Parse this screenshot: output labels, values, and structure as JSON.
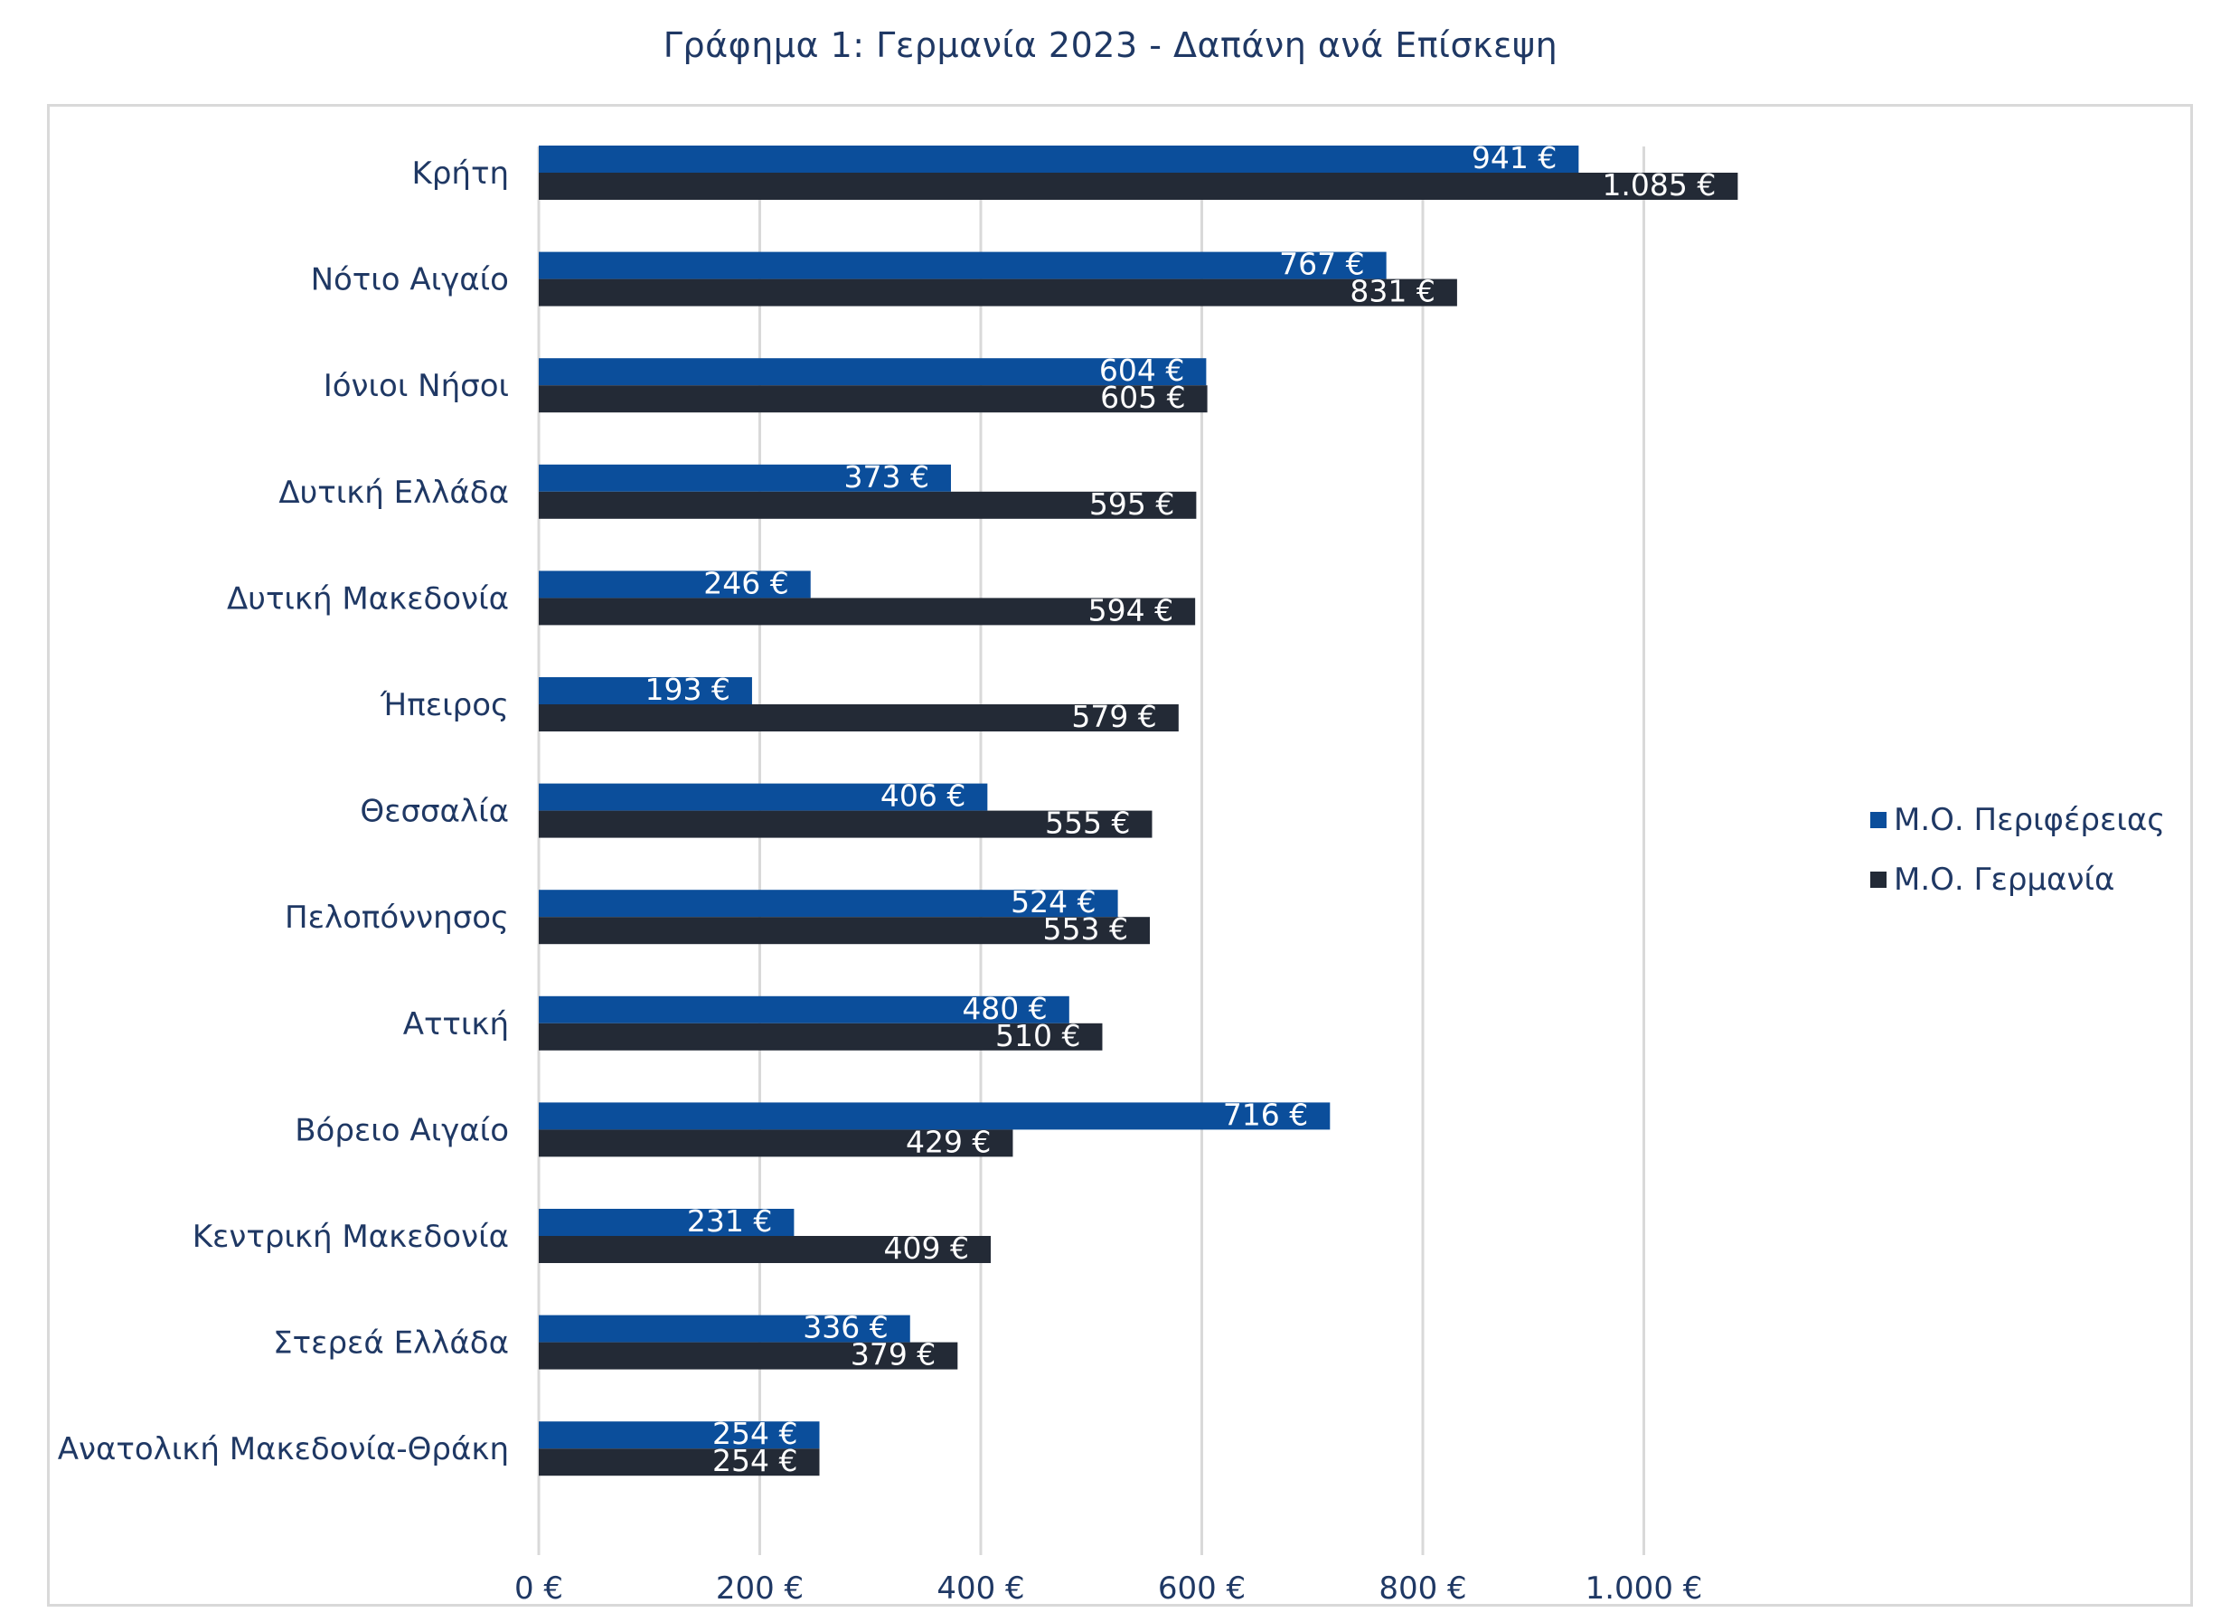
{
  "title": "Γράφημα 1: Γερμανία 2023 - Δαπάνη ανά Επίσκεψη",
  "colors": {
    "series_region": "#0b4e9b",
    "series_germany": "#232a36",
    "gridline": "#d9d9d9",
    "text": "#1f3864"
  },
  "chart_data": {
    "type": "bar",
    "orientation": "horizontal",
    "title": "Γράφημα 1: Γερμανία 2023 - Δαπάνη ανά Επίσκεψη",
    "categories": [
      "Κρήτη",
      "Νότιο Αιγαίο",
      "Ιόνιοι Νήσοι",
      "Δυτική Ελλάδα",
      "Δυτική Μακεδονία",
      "Ήπειρος",
      "Θεσσαλία",
      "Πελοπόννησος",
      "Αττική",
      "Βόρειο Αιγαίο",
      "Κεντρική Μακεδονία",
      "Στερεά Ελλάδα",
      "Ανατολική Μακεδονία-Θράκη"
    ],
    "series": [
      {
        "name": "Μ.Ο. Περιφέρειας",
        "values": [
          941,
          767,
          604,
          373,
          246,
          193,
          406,
          524,
          480,
          716,
          231,
          336,
          254
        ],
        "labels": [
          "941 €",
          "767 €",
          "604 €",
          "373 €",
          "246 €",
          "193 €",
          "406 €",
          "524 €",
          "480 €",
          "716 €",
          "231 €",
          "336 €",
          "254 €"
        ]
      },
      {
        "name": "Μ.Ο. Γερμανία",
        "values": [
          1085,
          831,
          605,
          595,
          594,
          579,
          555,
          553,
          510,
          429,
          409,
          379,
          254
        ],
        "labels": [
          "1.085 €",
          "831 €",
          "605 €",
          "595 €",
          "594 €",
          "579 €",
          "555 €",
          "553 €",
          "510 €",
          "429 €",
          "409 €",
          "379 €",
          "254 €"
        ]
      }
    ],
    "xlim": [
      0,
      1000
    ],
    "x_ticks": [
      0,
      200,
      400,
      600,
      800,
      1000
    ],
    "x_tick_labels": [
      "0 €",
      "200 €",
      "400 €",
      "600 €",
      "800 €",
      "1.000 €"
    ],
    "grid": "vertical",
    "legend": "right"
  }
}
